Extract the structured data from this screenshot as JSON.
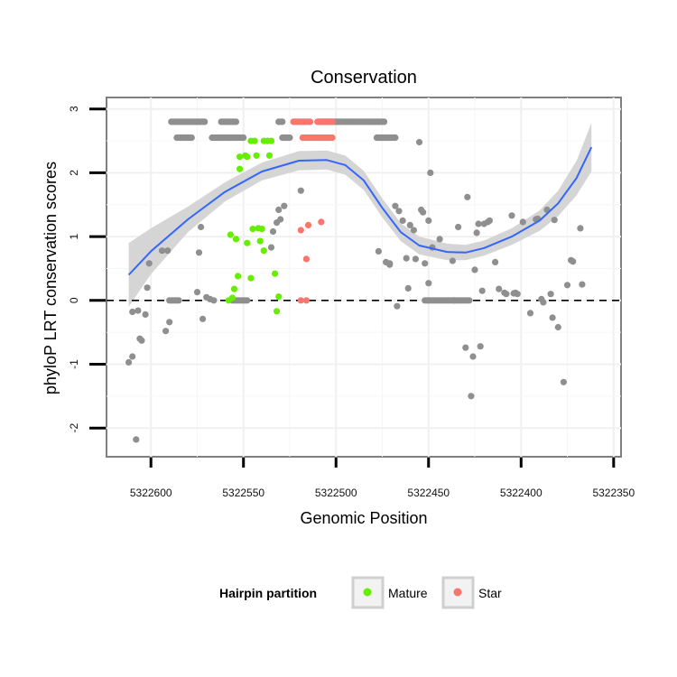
{
  "chart_data": {
    "type": "scatter",
    "title": "Conservation",
    "xlabel": "Genomic Position",
    "ylabel": "phyloP LRT conservation scores",
    "x_reversed": true,
    "xlim": [
      5322624,
      5322346
    ],
    "ylim": [
      -2.45,
      3.18
    ],
    "x_ticks": [
      5322600,
      5322550,
      5322500,
      5322450,
      5322400,
      5322350
    ],
    "x_tick_labels": [
      "5322600",
      "5322550",
      "5322500",
      "5322450",
      "5322400",
      "5322350"
    ],
    "y_ticks": [
      -2,
      -1,
      0,
      1,
      2,
      3
    ],
    "y_tick_labels": [
      "-2",
      "-1",
      "0",
      "1",
      "2",
      "3"
    ],
    "reference_line": {
      "y": 0,
      "style": "dashed"
    },
    "legend": {
      "title": "Hairpin partition",
      "position": "bottom",
      "entries": [
        {
          "label": "Mature",
          "color": "#66ee00"
        },
        {
          "label": "Star",
          "color": "#f8766d"
        }
      ]
    },
    "colors": {
      "other": "#8f8f8f",
      "Mature": "#66ee00",
      "Star": "#f8766d",
      "smooth_line": "#3366ff",
      "ribbon": "#d3d3d3"
    },
    "series": [
      {
        "name": "Other",
        "color": "#8f8f8f",
        "x_range_rows": [
          {
            "from": 5322589,
            "to": 5322571,
            "y": 2.8
          },
          {
            "from": 5322562,
            "to": 5322554,
            "y": 2.8
          },
          {
            "from": 5322531,
            "to": 5322529,
            "y": 2.8
          },
          {
            "from": 5322509,
            "to": 5322474,
            "y": 2.8
          },
          {
            "from": 5322586,
            "to": 5322578,
            "y": 2.55
          },
          {
            "from": 5322567,
            "to": 5322550,
            "y": 2.55
          },
          {
            "from": 5322529,
            "to": 5322525,
            "y": 2.55
          },
          {
            "from": 5322478,
            "to": 5322472,
            "y": 2.55
          },
          {
            "from": 5322468,
            "to": 5322476,
            "y": 2.55
          },
          {
            "from": 5322590,
            "to": 5322585,
            "y": 0.0
          },
          {
            "from": 5322556,
            "to": 5322548,
            "y": 0.0
          },
          {
            "from": 5322452,
            "to": 5322436,
            "y": 0.0
          },
          {
            "from": 5322436,
            "to": 5322428,
            "y": 0.0
          }
        ],
        "points": [
          [
            5322612,
            -0.97
          ],
          [
            5322610,
            -0.88
          ],
          [
            5322610,
            -0.18
          ],
          [
            5322608,
            -2.18
          ],
          [
            5322607,
            -0.16
          ],
          [
            5322606,
            -0.6
          ],
          [
            5322605,
            -0.63
          ],
          [
            5322603,
            -0.22
          ],
          [
            5322602,
            0.2
          ],
          [
            5322601,
            0.58
          ],
          [
            5322594,
            0.78
          ],
          [
            5322592,
            -0.48
          ],
          [
            5322591,
            0.78
          ],
          [
            5322590,
            -0.34
          ],
          [
            5322575,
            0.13
          ],
          [
            5322574,
            0.75
          ],
          [
            5322573,
            1.15
          ],
          [
            5322572,
            -0.29
          ],
          [
            5322570,
            0.05
          ],
          [
            5322568,
            0.02
          ],
          [
            5322566,
            0.0
          ],
          [
            5322535,
            0.83
          ],
          [
            5322534,
            1.08
          ],
          [
            5322532,
            1.22
          ],
          [
            5322531,
            1.42
          ],
          [
            5322530,
            1.27
          ],
          [
            5322528,
            1.48
          ],
          [
            5322519,
            1.72
          ],
          [
            5322477,
            0.77
          ],
          [
            5322473,
            0.6
          ],
          [
            5322471,
            0.58
          ],
          [
            5322471,
            0.56
          ],
          [
            5322468,
            1.48
          ],
          [
            5322467,
            -0.09
          ],
          [
            5322466,
            1.4
          ],
          [
            5322464,
            1.25
          ],
          [
            5322462,
            0.66
          ],
          [
            5322461,
            0.19
          ],
          [
            5322460,
            1.18
          ],
          [
            5322458,
            1.1
          ],
          [
            5322457,
            0.65
          ],
          [
            5322455,
            2.48
          ],
          [
            5322454,
            1.42
          ],
          [
            5322453,
            1.38
          ],
          [
            5322452,
            0.58
          ],
          [
            5322450,
            0.27
          ],
          [
            5322450,
            1.25
          ],
          [
            5322449,
            2.0
          ],
          [
            5322448,
            0.83
          ],
          [
            5322444,
            0.96
          ],
          [
            5322437,
            0.62
          ],
          [
            5322434,
            1.15
          ],
          [
            5322430,
            -0.74
          ],
          [
            5322429,
            1.62
          ],
          [
            5322427,
            -1.5
          ],
          [
            5322426,
            -0.88
          ],
          [
            5322425,
            0.48
          ],
          [
            5322424,
            1.06
          ],
          [
            5322423,
            1.2
          ],
          [
            5322422,
            -0.72
          ],
          [
            5322421,
            0.15
          ],
          [
            5322420,
            1.2
          ],
          [
            5322418,
            1.23
          ],
          [
            5322417,
            1.25
          ],
          [
            5322414,
            0.6
          ],
          [
            5322412,
            0.18
          ],
          [
            5322409,
            0.12
          ],
          [
            5322408,
            0.1
          ],
          [
            5322405,
            1.33
          ],
          [
            5322404,
            0.11
          ],
          [
            5322403,
            0.12
          ],
          [
            5322402,
            0.1
          ],
          [
            5322399,
            1.23
          ],
          [
            5322395,
            -0.2
          ],
          [
            5322392,
            1.27
          ],
          [
            5322391,
            1.28
          ],
          [
            5322389,
            0.02
          ],
          [
            5322388,
            -0.03
          ],
          [
            5322386,
            1.42
          ],
          [
            5322384,
            0.1
          ],
          [
            5322383,
            -0.27
          ],
          [
            5322382,
            1.26
          ],
          [
            5322380,
            -0.42
          ],
          [
            5322377,
            -1.28
          ],
          [
            5322375,
            0.24
          ],
          [
            5322373,
            0.63
          ],
          [
            5322372,
            0.61
          ],
          [
            5322368,
            1.13
          ],
          [
            5322367,
            0.25
          ]
        ]
      },
      {
        "name": "Mature",
        "color": "#66ee00",
        "points": [
          [
            5322557,
            1.03
          ],
          [
            5322555,
            0.18
          ],
          [
            5322554,
            0.96
          ],
          [
            5322553,
            0.38
          ],
          [
            5322552,
            2.06
          ],
          [
            5322552,
            2.25
          ],
          [
            5322549,
            2.27
          ],
          [
            5322548,
            2.25
          ],
          [
            5322548,
            0.9
          ],
          [
            5322546,
            2.5
          ],
          [
            5322546,
            0.35
          ],
          [
            5322545,
            1.12
          ],
          [
            5322544,
            2.5
          ],
          [
            5322543,
            2.27
          ],
          [
            5322542,
            1.13
          ],
          [
            5322541,
            0.93
          ],
          [
            5322540,
            1.12
          ],
          [
            5322539,
            2.5
          ],
          [
            5322539,
            0.78
          ],
          [
            5322537,
            2.5
          ],
          [
            5322536,
            2.27
          ],
          [
            5322535,
            2.5
          ],
          [
            5322533,
            0.42
          ],
          [
            5322532,
            -0.17
          ],
          [
            5322531,
            0.06
          ],
          [
            5322558,
            0.0
          ],
          [
            5322556,
            0.04
          ]
        ]
      },
      {
        "name": "Star",
        "color": "#f8766d",
        "x_range_rows": [
          {
            "from": 5322523,
            "to": 5322514,
            "y": 2.8
          },
          {
            "from": 5322510,
            "to": 5322502,
            "y": 2.8
          },
          {
            "from": 5322518,
            "to": 5322502,
            "y": 2.55
          }
        ],
        "points": [
          [
            5322519,
            1.1
          ],
          [
            5322516,
            0.65
          ],
          [
            5322515,
            1.18
          ],
          [
            5322508,
            1.23
          ],
          [
            5322519,
            0.0
          ],
          [
            5322516,
            0.0
          ]
        ]
      }
    ],
    "smooth_fit": {
      "points": [
        [
          5322612,
          0.4
        ],
        [
          5322600,
          0.77
        ],
        [
          5322580,
          1.27
        ],
        [
          5322560,
          1.7
        ],
        [
          5322540,
          2.02
        ],
        [
          5322520,
          2.19
        ],
        [
          5322505,
          2.2
        ],
        [
          5322495,
          2.12
        ],
        [
          5322485,
          1.88
        ],
        [
          5322475,
          1.45
        ],
        [
          5322465,
          1.07
        ],
        [
          5322455,
          0.86
        ],
        [
          5322440,
          0.76
        ],
        [
          5322430,
          0.75
        ],
        [
          5322420,
          0.82
        ],
        [
          5322405,
          1.0
        ],
        [
          5322390,
          1.25
        ],
        [
          5322380,
          1.52
        ],
        [
          5322370,
          1.92
        ],
        [
          5322362,
          2.4
        ]
      ],
      "ribbon_half_width": [
        [
          5322612,
          0.5
        ],
        [
          5322600,
          0.36
        ],
        [
          5322580,
          0.2
        ],
        [
          5322560,
          0.15
        ],
        [
          5322540,
          0.14
        ],
        [
          5322520,
          0.15
        ],
        [
          5322505,
          0.15
        ],
        [
          5322495,
          0.15
        ],
        [
          5322485,
          0.15
        ],
        [
          5322475,
          0.15
        ],
        [
          5322465,
          0.14
        ],
        [
          5322455,
          0.14
        ],
        [
          5322440,
          0.13
        ],
        [
          5322430,
          0.12
        ],
        [
          5322420,
          0.12
        ],
        [
          5322405,
          0.13
        ],
        [
          5322390,
          0.16
        ],
        [
          5322380,
          0.2
        ],
        [
          5322370,
          0.27
        ],
        [
          5322362,
          0.38
        ]
      ]
    }
  }
}
